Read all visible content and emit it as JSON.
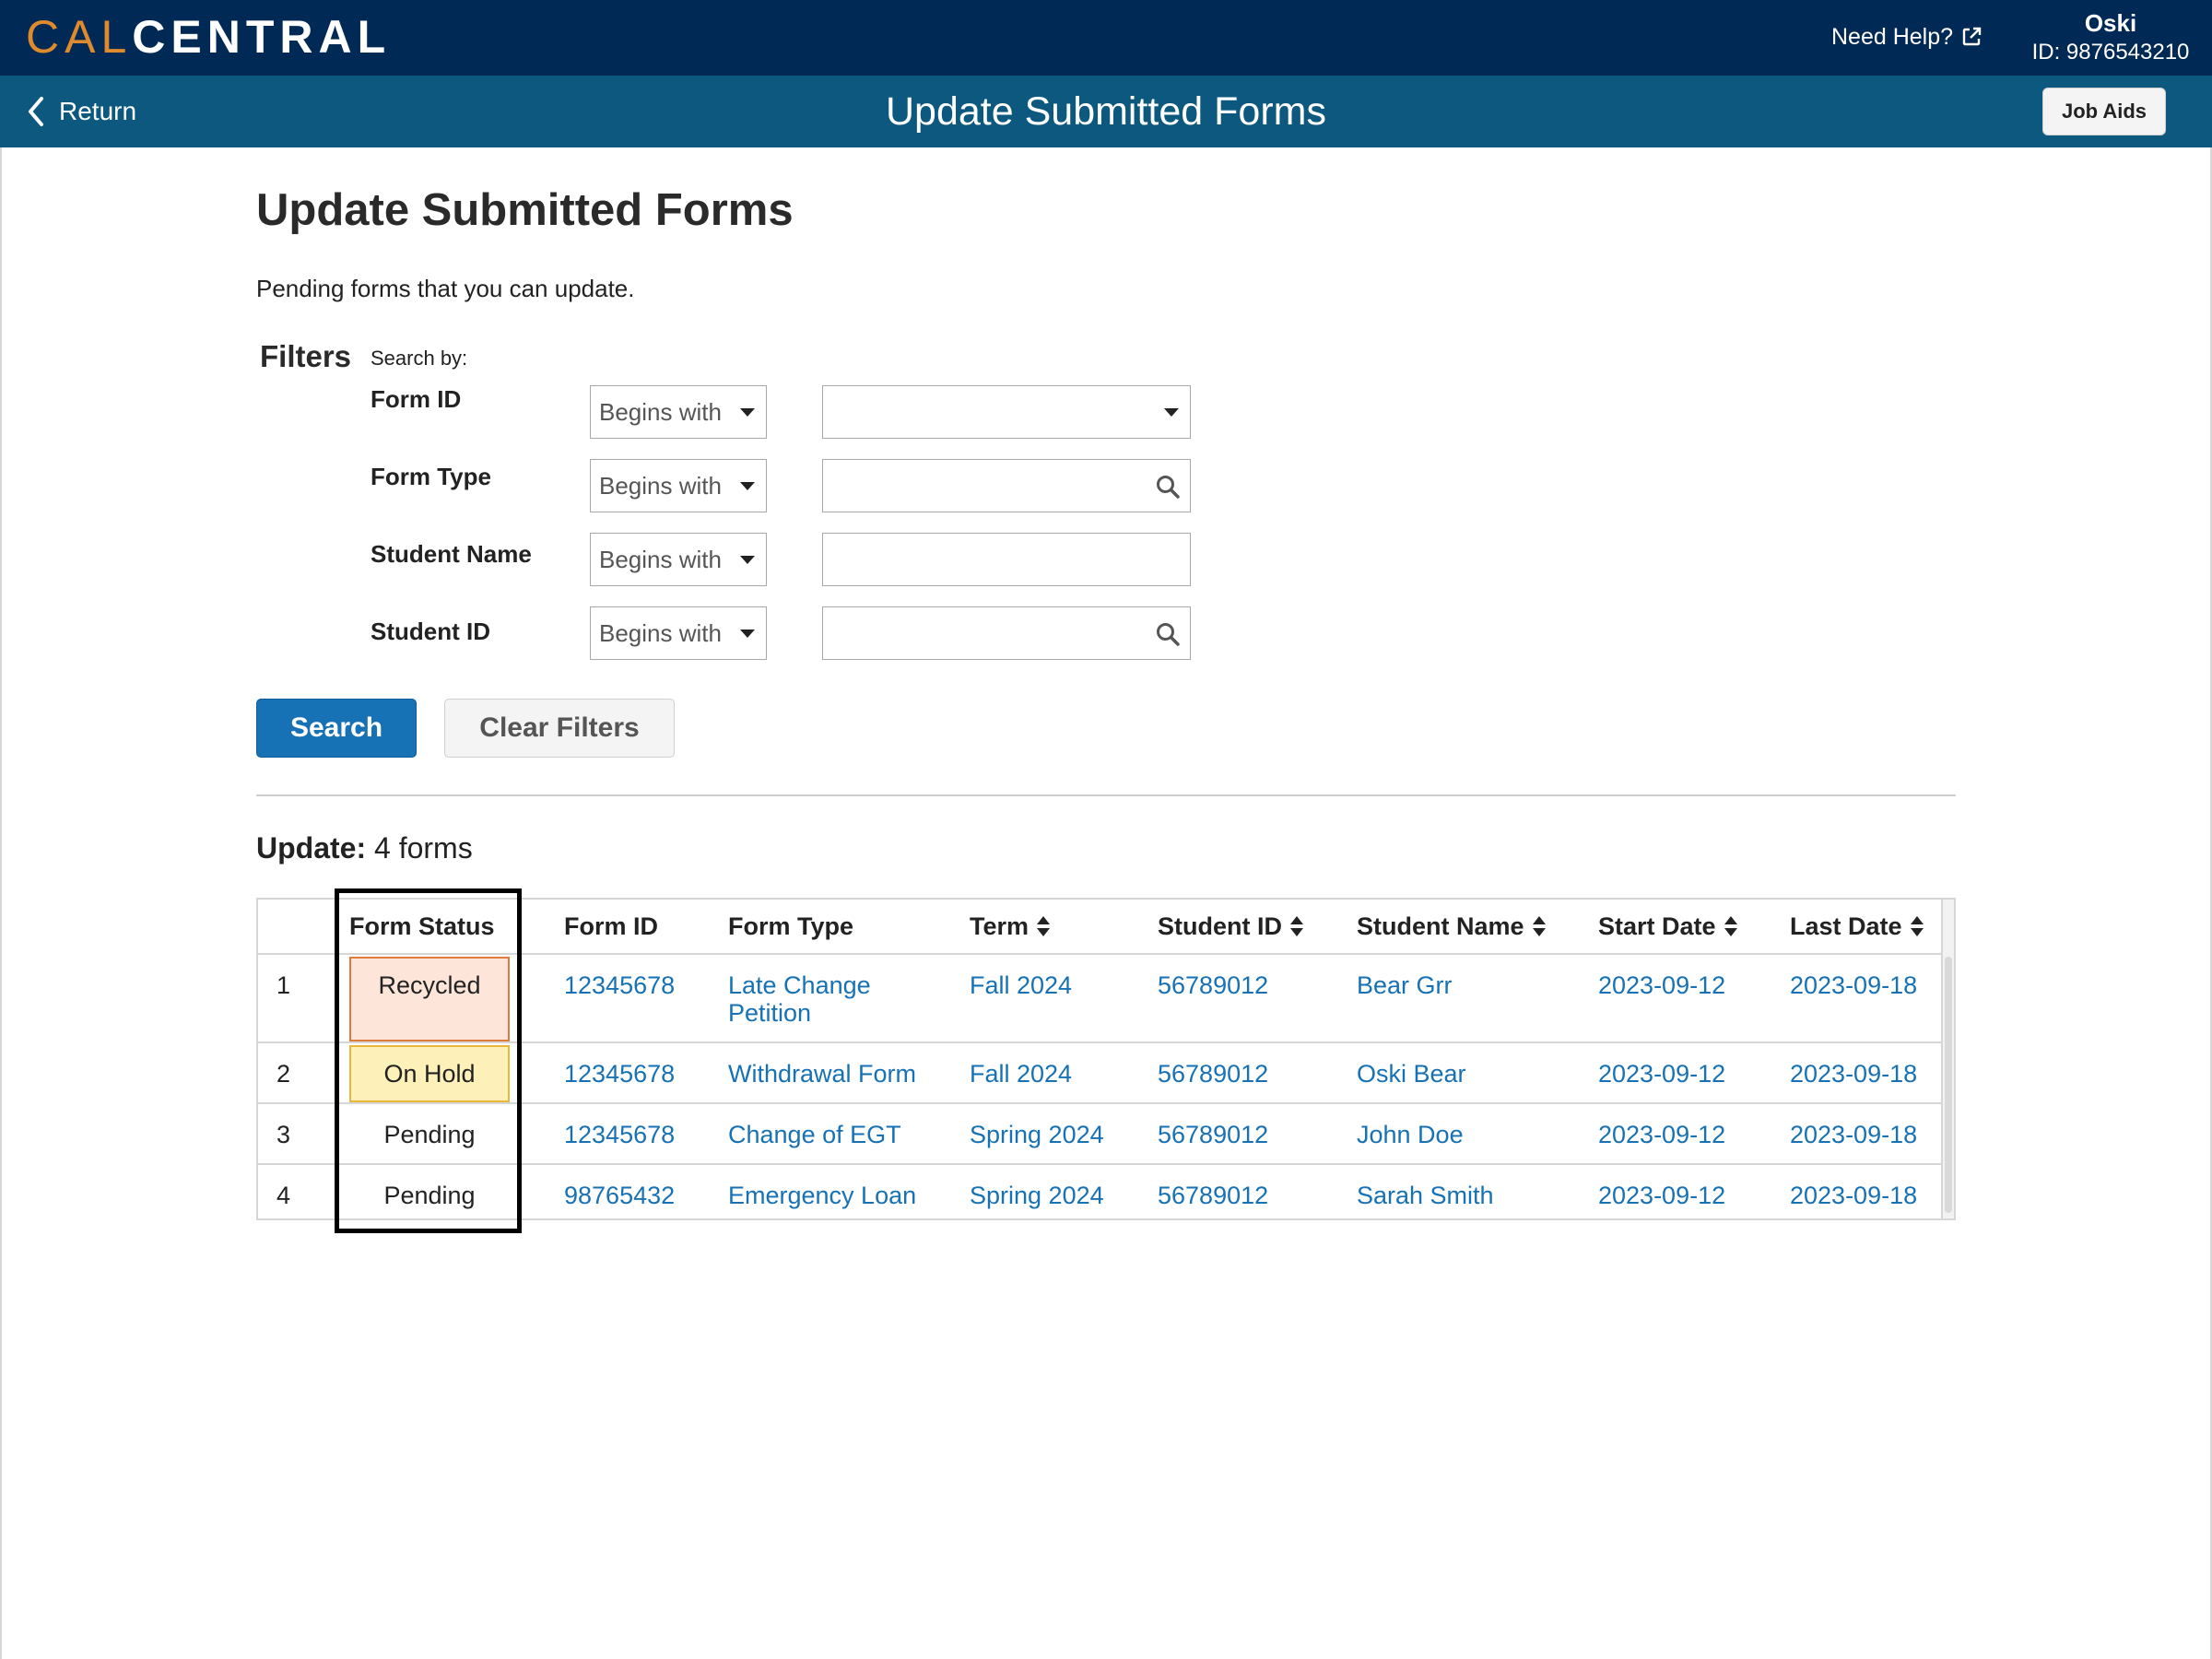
{
  "header": {
    "logo_cal": "CAL",
    "logo_central": "CENTRAL",
    "help_label": "Need Help?",
    "user_name": "Oski",
    "user_id": "ID: 9876543210"
  },
  "subheader": {
    "return_label": "Return",
    "title": "Update Submitted Forms",
    "job_aids_label": "Job Aids"
  },
  "page": {
    "title": "Update Submitted Forms",
    "description": "Pending forms that you can update."
  },
  "filters": {
    "label": "Filters",
    "search_by": "Search by:",
    "rows": [
      {
        "label": "Form ID",
        "operator": "Begins with",
        "value": "",
        "value_control": "dropdown"
      },
      {
        "label": "Form Type",
        "operator": "Begins with",
        "value": "",
        "value_control": "lookup"
      },
      {
        "label": "Student Name",
        "operator": "Begins with",
        "value": "",
        "value_control": "text"
      },
      {
        "label": "Student ID",
        "operator": "Begins with",
        "value": "",
        "value_control": "lookup"
      }
    ],
    "search_button": "Search",
    "clear_button": "Clear Filters"
  },
  "results": {
    "count_label": "Update:",
    "count_text": "4 forms"
  },
  "table": {
    "columns": [
      "",
      "Form Status",
      "Form ID",
      "Form Type",
      "Term",
      "Student ID",
      "Student Name",
      "Start Date",
      "Last Date"
    ],
    "sortable": [
      false,
      false,
      false,
      false,
      true,
      true,
      true,
      true,
      true
    ],
    "rows": [
      {
        "num": "1",
        "status": "Recycled",
        "form_id": "12345678",
        "form_type_1": "Late Change",
        "form_type_2": "Petition",
        "term": "Fall 2024",
        "student_id": "56789012",
        "student_name": "Bear Grr",
        "start_date": "2023-09-12",
        "last_date": "2023-09-18"
      },
      {
        "num": "2",
        "status": "On Hold",
        "form_id": "12345678",
        "form_type_1": "Withdrawal Form",
        "form_type_2": "",
        "term": "Fall 2024",
        "student_id": "56789012",
        "student_name": "Oski Bear",
        "start_date": "2023-09-12",
        "last_date": "2023-09-18"
      },
      {
        "num": "3",
        "status": "Pending",
        "form_id": "12345678",
        "form_type_1": "Change of EGT",
        "form_type_2": "",
        "term": "Spring 2024",
        "student_id": "56789012",
        "student_name": "John Doe",
        "start_date": "2023-09-12",
        "last_date": "2023-09-18"
      },
      {
        "num": "4",
        "status": "Pending",
        "form_id": "98765432",
        "form_type_1": "Emergency Loan",
        "form_type_2": "",
        "term": "Spring 2024",
        "student_id": "56789012",
        "student_name": "Sarah Smith",
        "start_date": "2023-09-12",
        "last_date": "2023-09-18"
      }
    ]
  },
  "colors": {
    "header_bg": "#002a55",
    "subheader_bg": "#0c587e",
    "link": "#1771b5",
    "logo_accent": "#e08a2e",
    "recycled_bg": "#fde6d9",
    "recycled_border": "#e07b3e",
    "on_hold_bg": "#fdf0b8",
    "on_hold_border": "#e8b73c"
  }
}
